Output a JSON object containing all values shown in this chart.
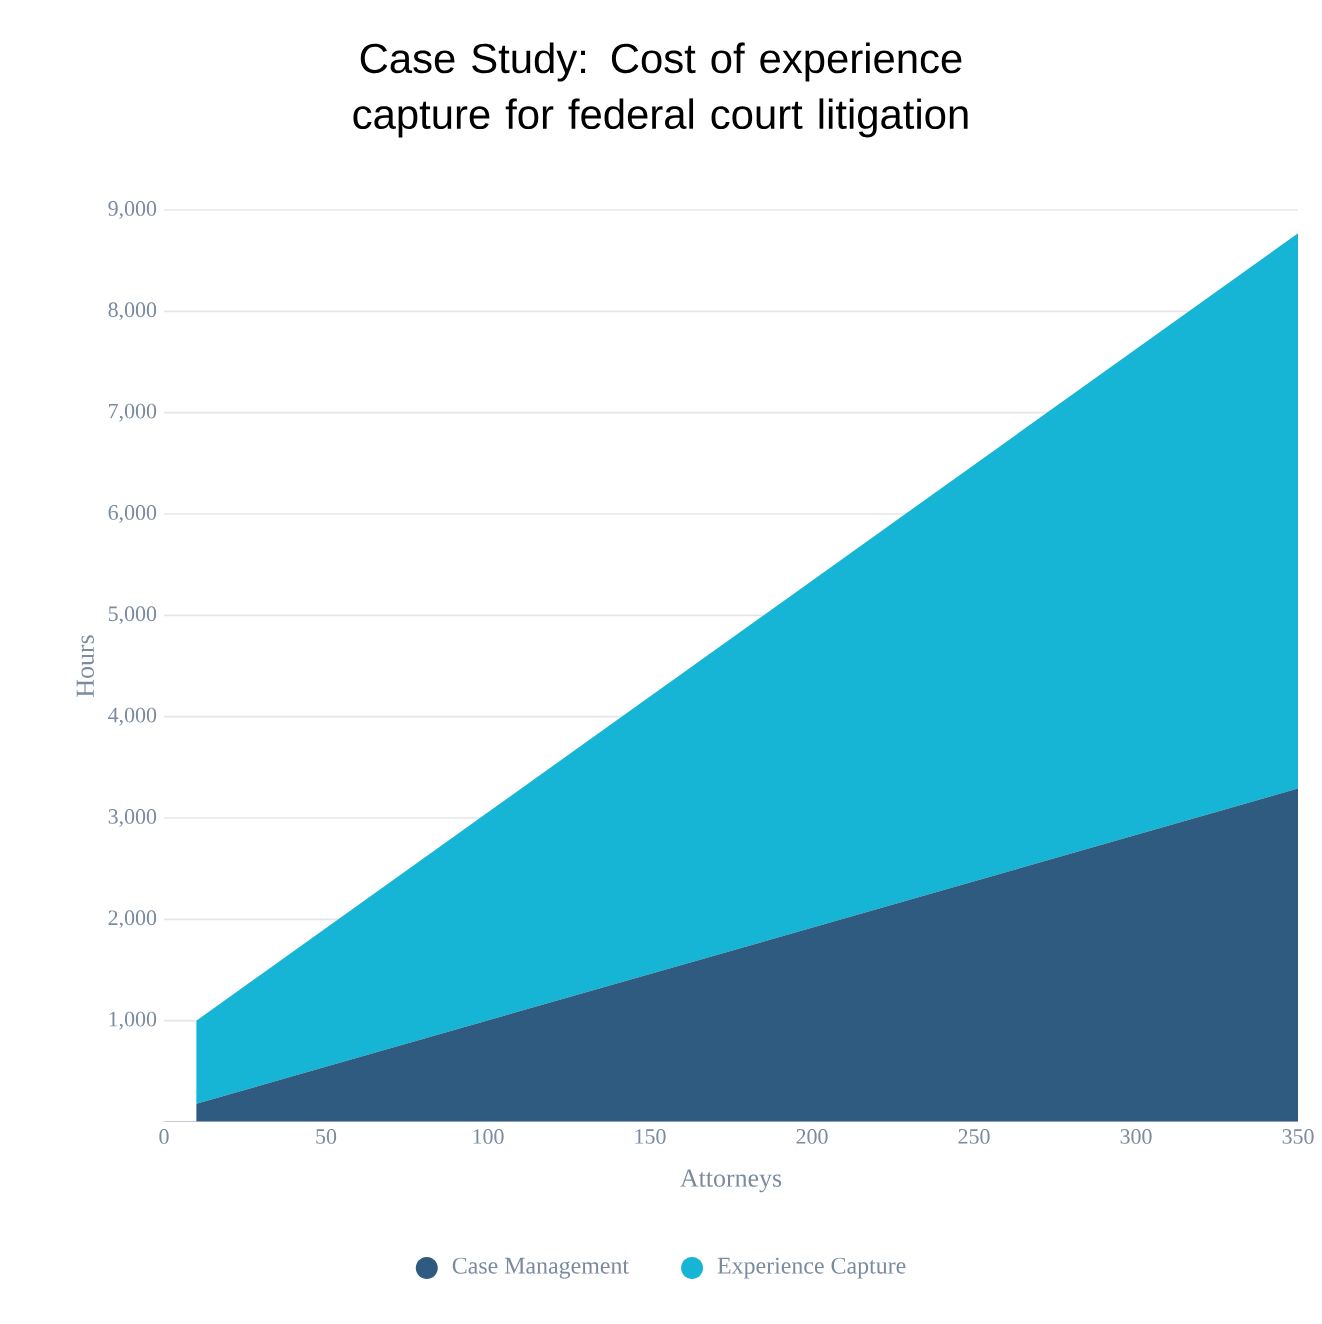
{
  "chart_data": {
    "type": "area",
    "stacked": true,
    "title": "Case Study: Cost of experience capture for federal court litigation",
    "xlabel": "Attorneys",
    "ylabel": "Hours",
    "x": [
      10,
      350
    ],
    "series": [
      {
        "name": "Case Management",
        "color": "#2e5b7f",
        "values": [
          180,
          3290
        ]
      },
      {
        "name": "Experience Capture",
        "color": "#17b5d5",
        "values": [
          820,
          5480
        ]
      }
    ],
    "xlim": [
      0,
      350
    ],
    "ylim": [
      0,
      9000
    ],
    "xticks": [
      0,
      50,
      100,
      150,
      200,
      250,
      300,
      350
    ],
    "yticks": [
      {
        "value": 1000,
        "label": "1,000"
      },
      {
        "value": 2000,
        "label": "2,000"
      },
      {
        "value": 3000,
        "label": "3,000"
      },
      {
        "value": 4000,
        "label": "4,000"
      },
      {
        "value": 5000,
        "label": "5,000"
      },
      {
        "value": 6000,
        "label": "6,000"
      },
      {
        "value": 7000,
        "label": "7,000"
      },
      {
        "value": 8000,
        "label": "8,000"
      },
      {
        "value": 9000,
        "label": "9,000"
      }
    ],
    "grid": "y",
    "legend": "bottom"
  }
}
